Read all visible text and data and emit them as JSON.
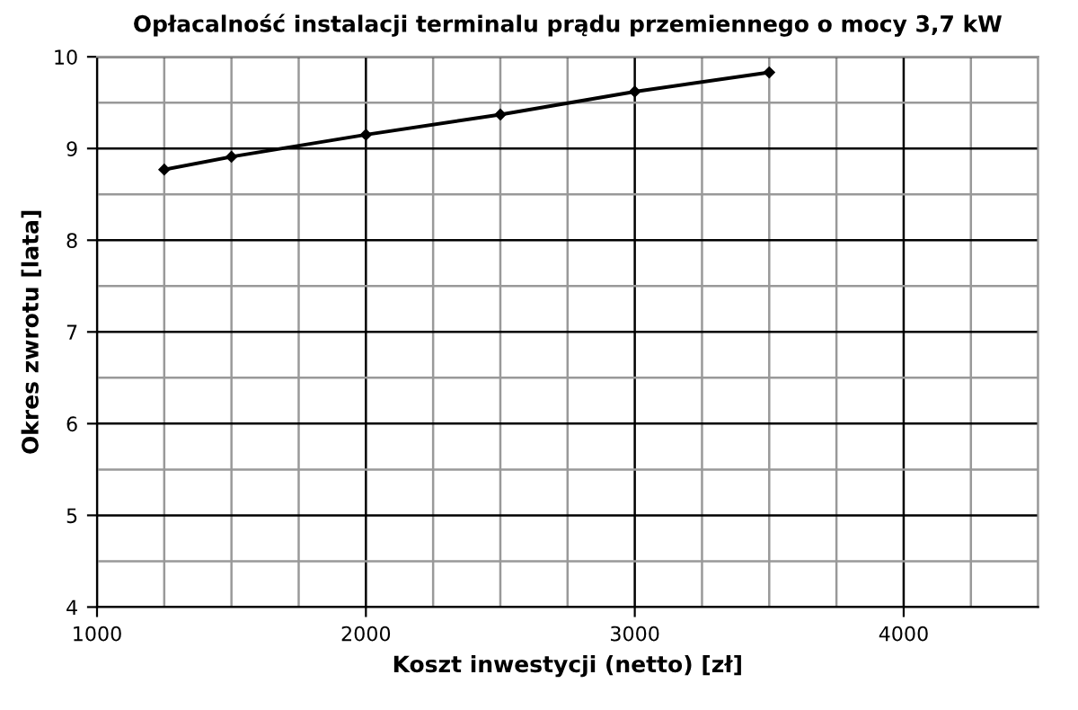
{
  "chart_data": {
    "type": "line",
    "title": "Opłacalność instalacji terminalu prądu przemiennego o mocy 3,7 kW",
    "xlabel": "Koszt inwestycji (netto) [zł]",
    "ylabel": "Okres zwrotu [lata]",
    "x": [
      1250,
      1500,
      2000,
      2500,
      3000,
      3500
    ],
    "series": [
      {
        "color": "#000000",
        "values": [
          8.77,
          8.91,
          9.15,
          9.37,
          9.62,
          9.83
        ]
      }
    ],
    "xlim": [
      1000,
      4500
    ],
    "xticks": [
      1000,
      2000,
      3000,
      4000
    ],
    "ylim": [
      4,
      10
    ],
    "yticks": [
      4,
      5,
      6,
      7,
      8,
      9,
      10
    ],
    "grid": true,
    "marker": "diamond",
    "line_style": "solid"
  }
}
